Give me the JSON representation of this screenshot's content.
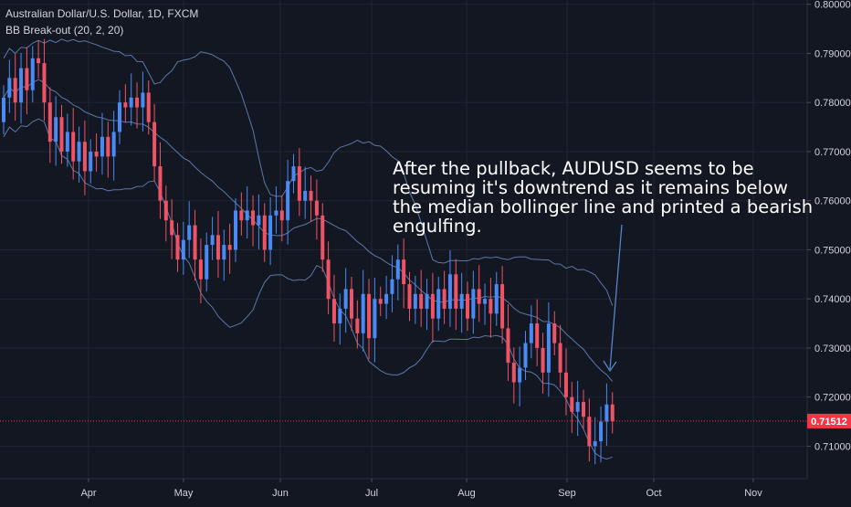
{
  "header": {
    "symbol": "Australian Dollar/U.S. Dollar, 1D, FXCM",
    "indicator": "BB Break-out (20, 2, 20)"
  },
  "annotation": {
    "lines": [
      "After the pullback, AUDUSD seems to be",
      "resuming it's downtrend as it remains below",
      "the median bollinger line and printed a bearish",
      "engulfing."
    ]
  },
  "colors": {
    "background": "#131722",
    "grid": "#1f2433",
    "up_candle": "#4a8af4",
    "down_candle": "#ef5366",
    "band": "#5b78a8",
    "price_line": "#f23645",
    "axis_text": "#d1d4dc"
  },
  "chart_data": {
    "type": "candlestick",
    "x_tick_labels": [
      "Apr",
      "May",
      "Jun",
      "Jul",
      "Aug",
      "Sep",
      "Oct",
      "Nov"
    ],
    "y_tick_labels": [
      "0.80000",
      "0.79000",
      "0.78000",
      "0.77000",
      "0.76000",
      "0.75000",
      "0.74000",
      "0.73000",
      "0.72000",
      "0.71000"
    ],
    "ylim": [
      0.7045,
      0.8005
    ],
    "last_price_label": "0.71512",
    "last_price": 0.71512,
    "grid": true,
    "series_open_close": [
      [
        0.776,
        0.781
      ],
      [
        0.781,
        0.785
      ],
      [
        0.785,
        0.78
      ],
      [
        0.78,
        0.787
      ],
      [
        0.787,
        0.7825
      ],
      [
        0.7825,
        0.789
      ],
      [
        0.789,
        0.788
      ],
      [
        0.788,
        0.78
      ],
      [
        0.78,
        0.772
      ],
      [
        0.772,
        0.777
      ],
      [
        0.777,
        0.77
      ],
      [
        0.77,
        0.774
      ],
      [
        0.774,
        0.768
      ],
      [
        0.768,
        0.772
      ],
      [
        0.772,
        0.766
      ],
      [
        0.766,
        0.77
      ],
      [
        0.77,
        0.769
      ],
      [
        0.769,
        0.773
      ],
      [
        0.773,
        0.769
      ],
      [
        0.769,
        0.774
      ],
      [
        0.774,
        0.78
      ],
      [
        0.78,
        0.779
      ],
      [
        0.779,
        0.781
      ],
      [
        0.781,
        0.779
      ],
      [
        0.779,
        0.782
      ],
      [
        0.782,
        0.776
      ],
      [
        0.776,
        0.767
      ],
      [
        0.767,
        0.76
      ],
      [
        0.76,
        0.756
      ],
      [
        0.756,
        0.753
      ],
      [
        0.753,
        0.748
      ],
      [
        0.748,
        0.752
      ],
      [
        0.752,
        0.755
      ],
      [
        0.755,
        0.748
      ],
      [
        0.748,
        0.744
      ],
      [
        0.744,
        0.751
      ],
      [
        0.751,
        0.753
      ],
      [
        0.753,
        0.748
      ],
      [
        0.748,
        0.751
      ],
      [
        0.751,
        0.75
      ],
      [
        0.75,
        0.758
      ],
      [
        0.758,
        0.756
      ],
      [
        0.756,
        0.758
      ],
      [
        0.758,
        0.755
      ],
      [
        0.755,
        0.757
      ],
      [
        0.757,
        0.75
      ],
      [
        0.75,
        0.757
      ],
      [
        0.757,
        0.758
      ],
      [
        0.758,
        0.756
      ],
      [
        0.756,
        0.764
      ],
      [
        0.764,
        0.767
      ],
      [
        0.767,
        0.76
      ],
      [
        0.76,
        0.762
      ],
      [
        0.762,
        0.76
      ],
      [
        0.76,
        0.757
      ],
      [
        0.757,
        0.748
      ],
      [
        0.748,
        0.74
      ],
      [
        0.74,
        0.735
      ],
      [
        0.735,
        0.738
      ],
      [
        0.738,
        0.742
      ],
      [
        0.742,
        0.736
      ],
      [
        0.736,
        0.733
      ],
      [
        0.733,
        0.741
      ],
      [
        0.741,
        0.732
      ],
      [
        0.732,
        0.74
      ],
      [
        0.74,
        0.739
      ],
      [
        0.739,
        0.741
      ],
      [
        0.741,
        0.744
      ],
      [
        0.744,
        0.748
      ],
      [
        0.748,
        0.743
      ],
      [
        0.743,
        0.738
      ],
      [
        0.738,
        0.741
      ],
      [
        0.741,
        0.738
      ],
      [
        0.738,
        0.741
      ],
      [
        0.741,
        0.736
      ],
      [
        0.736,
        0.742
      ],
      [
        0.742,
        0.738
      ],
      [
        0.738,
        0.745
      ],
      [
        0.745,
        0.738
      ],
      [
        0.738,
        0.741
      ],
      [
        0.741,
        0.736
      ],
      [
        0.736,
        0.742
      ],
      [
        0.742,
        0.739
      ],
      [
        0.739,
        0.74
      ],
      [
        0.74,
        0.737
      ],
      [
        0.737,
        0.743
      ],
      [
        0.743,
        0.734
      ],
      [
        0.734,
        0.727
      ],
      [
        0.727,
        0.723
      ],
      [
        0.723,
        0.726
      ],
      [
        0.726,
        0.731
      ],
      [
        0.731,
        0.735
      ],
      [
        0.735,
        0.73
      ],
      [
        0.73,
        0.725
      ],
      [
        0.725,
        0.735
      ],
      [
        0.735,
        0.731
      ],
      [
        0.731,
        0.725
      ],
      [
        0.725,
        0.72
      ],
      [
        0.72,
        0.717
      ],
      [
        0.717,
        0.719
      ],
      [
        0.719,
        0.716
      ],
      [
        0.716,
        0.71
      ],
      [
        0.71,
        0.711
      ],
      [
        0.711,
        0.715
      ],
      [
        0.715,
        0.7185
      ],
      [
        0.7185,
        0.7151
      ]
    ]
  }
}
